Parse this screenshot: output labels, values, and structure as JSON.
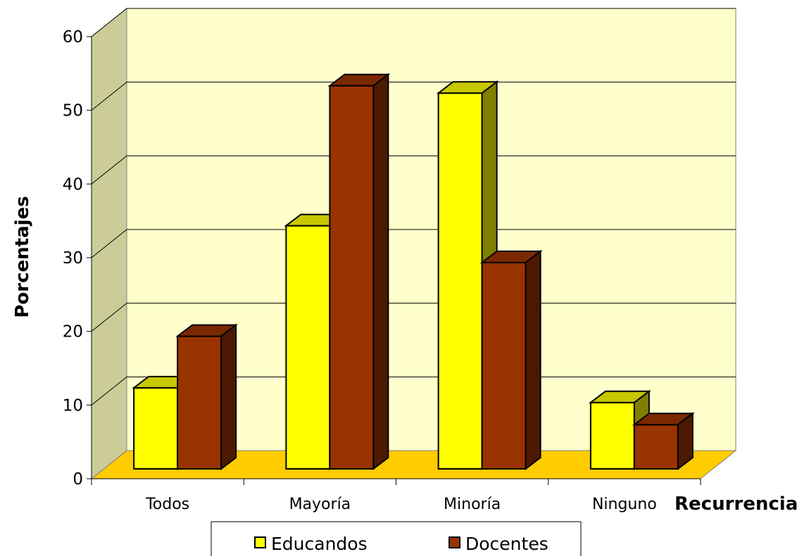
{
  "chart_data": {
    "type": "bar",
    "ylabel": "Porcentajes",
    "xlabel": "Recurrencia",
    "categories": [
      "Todos",
      "Mayoría",
      "Minoría",
      "Ninguno"
    ],
    "series": [
      {
        "name": "Educandos",
        "values": [
          11,
          33,
          51,
          9
        ],
        "color": "#ffff00",
        "top_color": "#c8c800",
        "side_color": "#808000"
      },
      {
        "name": "Docentes",
        "values": [
          18,
          52,
          28,
          6
        ],
        "color": "#993300",
        "top_color": "#7a2800",
        "side_color": "#4d1900"
      }
    ],
    "ylim": [
      0,
      60
    ],
    "yticks": [
      "0",
      "10",
      "20",
      "30",
      "40",
      "50",
      "60"
    ],
    "grid": true,
    "three_d": true,
    "wall_color": "#ffffcc",
    "floor_color": "#ffcc00",
    "legend_position": "bottom"
  }
}
